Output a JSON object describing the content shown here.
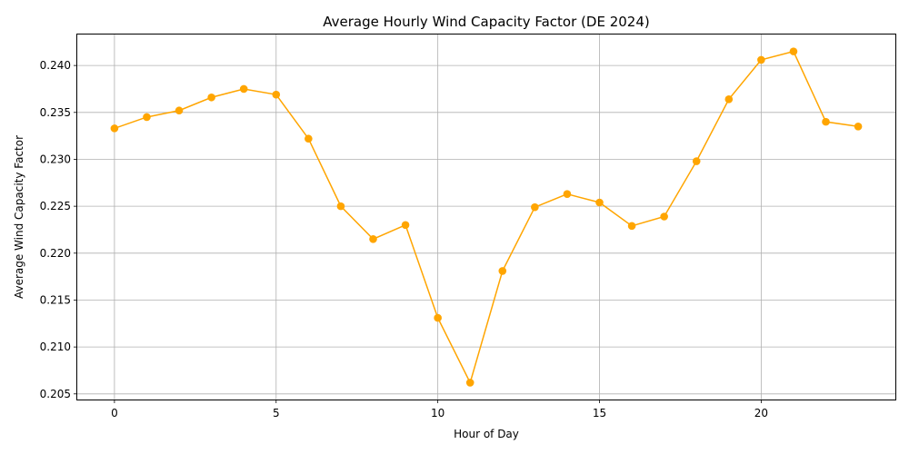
{
  "chart_data": {
    "type": "line",
    "title": "Average Hourly Wind Capacity Factor (DE 2024)",
    "xlabel": "Hour of Day",
    "ylabel": "Average Wind Capacity Factor",
    "xlim": [
      -1.15,
      24.15
    ],
    "ylim": [
      0.2044,
      0.2434
    ],
    "xticks": [
      0,
      5,
      10,
      15,
      20
    ],
    "xtick_labels": [
      "0",
      "5",
      "10",
      "15",
      "20"
    ],
    "yticks": [
      0.205,
      0.21,
      0.215,
      0.22,
      0.225,
      0.23,
      0.235,
      0.24
    ],
    "ytick_labels": [
      "0.205",
      "0.210",
      "0.215",
      "0.220",
      "0.225",
      "0.230",
      "0.235",
      "0.240"
    ],
    "grid": true,
    "series": [
      {
        "color": "#ffa500",
        "marker": "circle",
        "x": [
          0,
          1,
          2,
          3,
          4,
          5,
          6,
          7,
          8,
          9,
          10,
          11,
          12,
          13,
          14,
          15,
          16,
          17,
          18,
          19,
          20,
          21,
          22,
          23
        ],
        "y": [
          0.2333,
          0.2345,
          0.2352,
          0.2366,
          0.2375,
          0.2369,
          0.2322,
          0.225,
          0.2215,
          0.223,
          0.2131,
          0.2062,
          0.2181,
          0.2249,
          0.2263,
          0.2254,
          0.2229,
          0.2239,
          0.2298,
          0.2364,
          0.2406,
          0.2415,
          0.234,
          0.2335
        ]
      }
    ]
  }
}
